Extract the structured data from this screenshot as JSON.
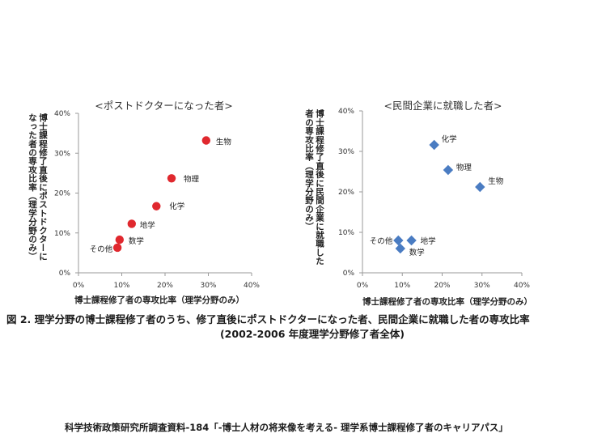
{
  "chart_data": [
    {
      "type": "scatter",
      "title": "<ポストドクターになった者>",
      "xlabel": "博士課程修了者の専攻比率（理学分野のみ）",
      "ylabel": "博士課程修了直後にポストドクターに\nなった者の専攻比率（理学分野のみ）",
      "xlim": [
        0,
        40
      ],
      "ylim": [
        0,
        40
      ],
      "xticks": [
        "0%",
        "10%",
        "20%",
        "30%",
        "40%"
      ],
      "yticks": [
        "0%",
        "10%",
        "20%",
        "30%",
        "40%"
      ],
      "grid": false,
      "marker": "circle",
      "color": "#e0282e",
      "points": [
        {
          "label": "生物",
          "x": 29.5,
          "y": 33.2
        },
        {
          "label": "物理",
          "x": 21.5,
          "y": 23.7
        },
        {
          "label": "化学",
          "x": 18.0,
          "y": 16.7
        },
        {
          "label": "地学",
          "x": 12.3,
          "y": 12.3
        },
        {
          "label": "数学",
          "x": 9.5,
          "y": 8.3
        },
        {
          "label": "その他",
          "x": 9.0,
          "y": 6.3
        }
      ]
    },
    {
      "type": "scatter",
      "title": "<民間企業に就職した者>",
      "xlabel": "博士課程修了者の専攻比率（理学分野のみ）",
      "ylabel": "博士課程修了直後に民間企業に就職した\n者の専攻比率（理学分野のみ）",
      "xlim": [
        0,
        40
      ],
      "ylim": [
        0,
        40
      ],
      "xticks": [
        "0%",
        "10%",
        "20%",
        "30%",
        "40%"
      ],
      "yticks": [
        "0%",
        "10%",
        "20%",
        "30%",
        "40%"
      ],
      "grid": false,
      "marker": "diamond",
      "color": "#4a7cc2",
      "points": [
        {
          "label": "化学",
          "x": 18.0,
          "y": 31.6
        },
        {
          "label": "物理",
          "x": 21.5,
          "y": 25.4
        },
        {
          "label": "生物",
          "x": 29.5,
          "y": 21.2
        },
        {
          "label": "地学",
          "x": 12.3,
          "y": 8.0
        },
        {
          "label": "その他",
          "x": 9.0,
          "y": 8.0
        },
        {
          "label": "数学",
          "x": 9.5,
          "y": 6.0
        }
      ]
    }
  ],
  "caption": {
    "line1": "図 2. 理学分野の博士課程修了者のうち、修了直後にポストドクターになった者、民間企業に就職した者の専攻比率",
    "line2": "(2002-2006 年度理学分野修了者全体)"
  },
  "source": "科学技術政策研究所調査資料-184「-博士人材の将来像を考える- 理学系博士課程修了者のキャリアパス」"
}
